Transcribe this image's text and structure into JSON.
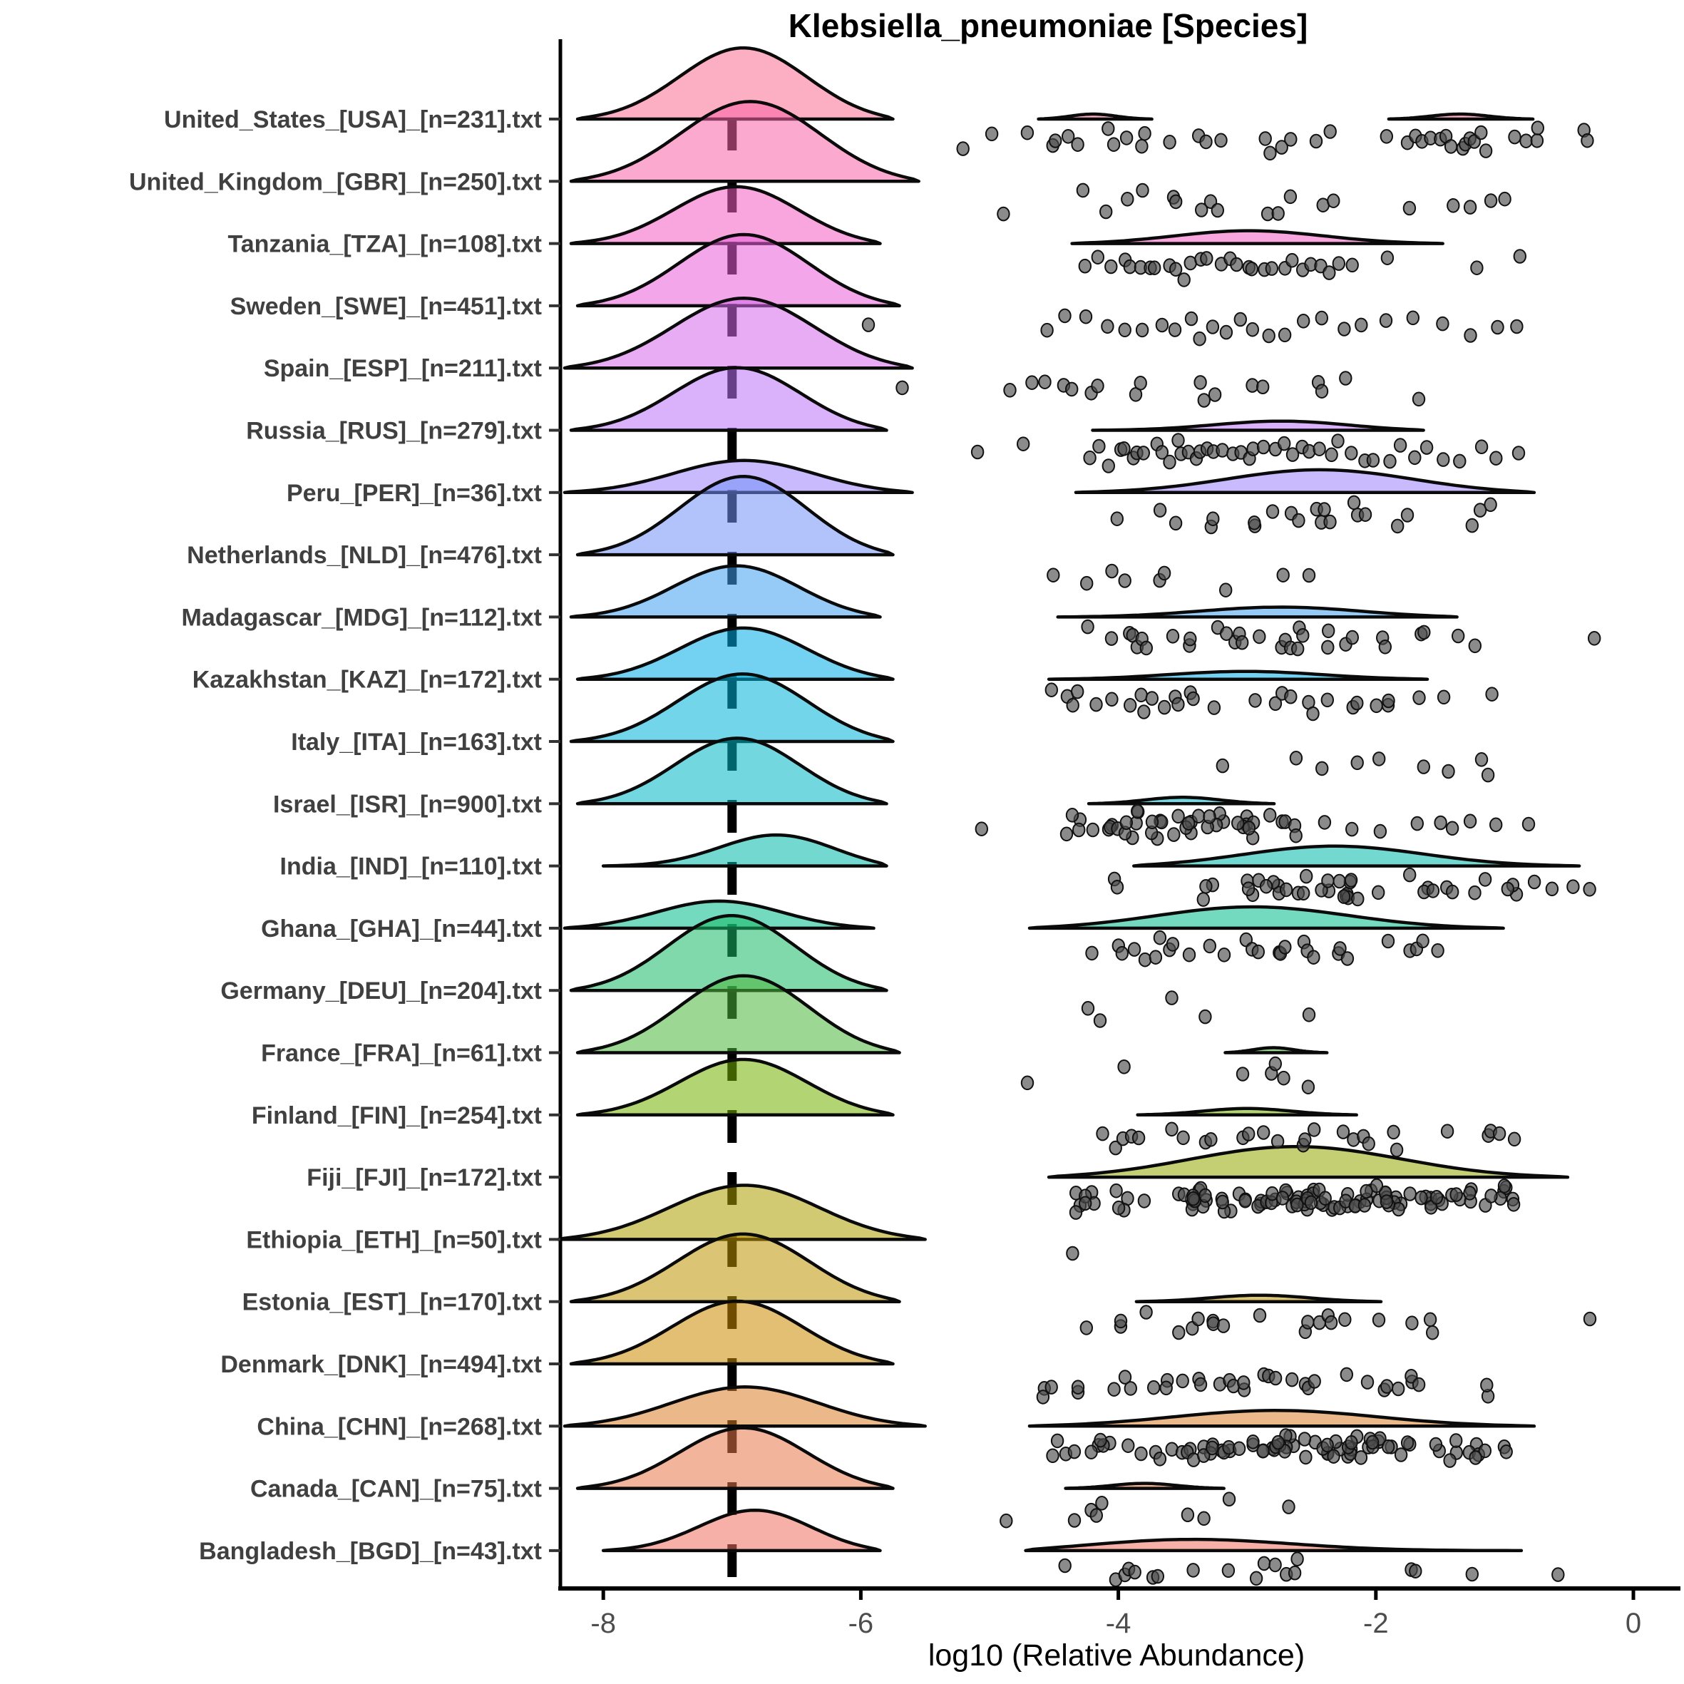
{
  "title": "Klebsiella_pneumoniae [Species]",
  "xlabel": "log10 (Relative Abundance)",
  "chart_data": {
    "type": "ridgeline_raincloud",
    "x_axis": {
      "ticks": [
        -8,
        -6,
        -4,
        -2,
        0
      ],
      "tick_labels": [
        "-8",
        "-6",
        "-4",
        "-2",
        "0"
      ],
      "xlim": [
        -8.33,
        0.35
      ]
    },
    "median_dash_line_x": -7,
    "style": {
      "fill_alpha": 0.55,
      "outline_color": "#0a0a0a",
      "point_color": "#4d4d4d",
      "point_stroke": "#111111",
      "axis_color": "#000000",
      "tick_label_color": "#4d4d4d",
      "y_label_color": "#404040"
    },
    "rows": [
      {
        "label": "United_States_[USA]_[n=231].txt",
        "n": 231,
        "color": "#FA6E90",
        "zero_ridge": {
          "x0": -8.2,
          "x1": -5.75,
          "peak": -6.9,
          "h": 100
        },
        "detect_ridges": [
          {
            "x0": -4.62,
            "x1": -3.74,
            "peak": -4.2,
            "h": 7
          },
          {
            "x0": -1.9,
            "x1": -0.78,
            "peak": -1.35,
            "h": 7
          }
        ],
        "points": [
          -5.19,
          -4.98,
          -4.72,
          -4.5,
          -4.47,
          -4.4,
          -4.33,
          -4.09,
          -4.02,
          -3.94,
          -3.83,
          -3.78,
          -3.59,
          -3.38,
          -3.31,
          -3.21,
          -2.86,
          -2.81,
          -2.74,
          -2.67,
          -2.46,
          -2.34,
          -1.91,
          -1.77,
          -1.7,
          -1.65,
          -1.58,
          -1.52,
          -1.45,
          -1.4,
          -1.34,
          -1.29,
          -1.25,
          -1.22,
          -1.18,
          -1.13,
          -0.94,
          -0.84,
          -0.77,
          -0.75,
          -0.38,
          -0.35
        ],
        "point_clusters": []
      },
      {
        "label": "United_Kingdom_[GBR]_[n=250].txt",
        "n": 250,
        "color": "#F863A8",
        "zero_ridge": {
          "x0": -8.25,
          "x1": -5.55,
          "peak": -6.85,
          "h": 112
        },
        "detect_ridges": [],
        "points": [
          -4.88,
          -4.26,
          -4.09,
          -3.93,
          -3.81,
          -3.59,
          -3.55,
          -3.36,
          -3.29,
          -3.24,
          -2.84,
          -2.77,
          -2.67,
          -2.41,
          -2.34,
          -1.74,
          -1.41,
          -1.25,
          -1.1,
          -0.99
        ],
        "point_clusters": []
      },
      {
        "label": "Tanzania_[TZA]_[n=108].txt",
        "n": 108,
        "color": "#F25CC1",
        "zero_ridge": {
          "x0": -8.25,
          "x1": -5.85,
          "peak": -6.95,
          "h": 80
        },
        "detect_ridges": [
          {
            "x0": -4.36,
            "x1": -1.48,
            "peak": -3.0,
            "h": 18
          }
        ],
        "points": [
          -4.28,
          -4.15,
          -4.05,
          -3.95,
          -3.9,
          -3.82,
          -3.75,
          -3.7,
          -3.62,
          -3.55,
          -3.5,
          -3.45,
          -3.38,
          -3.3,
          -3.22,
          -3.15,
          -3.08,
          -3.0,
          -2.95,
          -2.88,
          -2.8,
          -2.72,
          -2.65,
          -2.58,
          -2.5,
          -2.42,
          -2.35,
          -2.28,
          -2.2,
          -1.93,
          -1.2,
          -0.87
        ],
        "point_clusters": []
      },
      {
        "label": "Sweden_[SWE]_[n=451].txt",
        "n": 451,
        "color": "#E95DD8",
        "zero_ridge": {
          "x0": -8.2,
          "x1": -5.7,
          "peak": -6.9,
          "h": 100
        },
        "detect_ridges": [],
        "points": [
          -5.95,
          -4.54,
          -4.4,
          -4.25,
          -4.1,
          -3.95,
          -3.8,
          -3.65,
          -3.55,
          -3.45,
          -3.35,
          -3.25,
          -3.15,
          -3.05,
          -2.95,
          -2.85,
          -2.7,
          -2.55,
          -2.4,
          -2.25,
          -2.1,
          -1.9,
          -1.7,
          -1.5,
          -1.25,
          -1.05,
          -0.92
        ],
        "point_clusters": []
      },
      {
        "label": "Spain_[ESP]_[n=211].txt",
        "n": 211,
        "color": "#D567EB",
        "zero_ridge": {
          "x0": -8.3,
          "x1": -5.6,
          "peak": -6.9,
          "h": 98
        },
        "detect_ridges": [],
        "points": [
          -5.66,
          -4.83,
          -4.69,
          -4.59,
          -4.42,
          -4.38,
          -4.21,
          -4.18,
          -3.88,
          -3.85,
          -3.38,
          -3.34,
          -3.27,
          -2.98,
          -2.86,
          -2.43,
          -2.4,
          -2.24,
          -1.67
        ],
        "point_clusters": []
      },
      {
        "label": "Russia_[RUS]_[n=279].txt",
        "n": 279,
        "color": "#BC71F7",
        "zero_ridge": {
          "x0": -8.25,
          "x1": -5.8,
          "peak": -6.95,
          "h": 88
        },
        "detect_ridges": [
          {
            "x0": -4.2,
            "x1": -1.63,
            "peak": -2.7,
            "h": 13
          }
        ],
        "points": [
          -5.11,
          -4.76,
          -4.21,
          -4.15,
          -4.08,
          -4.0,
          -3.95,
          -3.9,
          -3.85,
          -3.8,
          -3.72,
          -3.65,
          -3.6,
          -3.55,
          -3.5,
          -3.45,
          -3.4,
          -3.35,
          -3.3,
          -3.25,
          -3.2,
          -3.12,
          -3.05,
          -3.0,
          -2.95,
          -2.88,
          -2.8,
          -2.72,
          -2.65,
          -2.58,
          -2.5,
          -2.42,
          -2.35,
          -2.28,
          -2.2,
          -2.1,
          -2.0,
          -1.9,
          -1.8,
          -1.7,
          -1.6,
          -1.48,
          -1.35,
          -1.2,
          -1.05,
          -0.89
        ],
        "point_clusters": []
      },
      {
        "label": "Peru_[PER]_[n=36].txt",
        "n": 36,
        "color": "#9C80FB",
        "zero_ridge": {
          "x0": -8.3,
          "x1": -5.6,
          "peak": -6.9,
          "h": 45
        },
        "detect_ridges": [
          {
            "x0": -4.33,
            "x1": -0.77,
            "peak": -2.41,
            "h": 32
          }
        ],
        "points": [
          -4.02,
          -3.69,
          -3.55,
          -3.29,
          -3.27,
          -2.96,
          -2.94,
          -2.79,
          -2.67,
          -2.58,
          -2.46,
          -2.44,
          -2.42,
          -2.36,
          -2.17,
          -2.15,
          -2.1,
          -1.84,
          -1.74,
          -1.25,
          -1.17,
          -1.13
        ],
        "point_clusters": []
      },
      {
        "label": "Netherlands_[NLD]_[n=476].txt",
        "n": 476,
        "color": "#7291F8",
        "zero_ridge": {
          "x0": -8.2,
          "x1": -5.75,
          "peak": -6.9,
          "h": 110
        },
        "detect_ridges": [],
        "points": [
          -4.5,
          -4.24,
          -4.07,
          -3.95,
          -3.69,
          -3.66,
          -3.17,
          -2.74,
          -2.5
        ],
        "point_clusters": []
      },
      {
        "label": "Madagascar_[MDG]_[n=112].txt",
        "n": 112,
        "color": "#3FA0F0",
        "zero_ridge": {
          "x0": -8.25,
          "x1": -5.85,
          "peak": -6.95,
          "h": 72
        },
        "detect_ridges": [
          {
            "x0": -4.47,
            "x1": -1.37,
            "peak": -2.7,
            "h": 14
          }
        ],
        "points": [
          -4.26,
          -4.07,
          -3.93,
          -3.9,
          -3.87,
          -3.83,
          -3.8,
          -3.57,
          -3.45,
          -3.43,
          -3.24,
          -3.17,
          -3.1,
          -3.07,
          -3.03,
          -2.91,
          -2.74,
          -2.71,
          -2.68,
          -2.62,
          -2.59,
          -2.55,
          -2.38,
          -2.36,
          -2.22,
          -2.2,
          -1.96,
          -1.94,
          -1.63,
          -1.61,
          -1.34,
          -1.22,
          -0.32
        ],
        "point_clusters": []
      },
      {
        "label": "Kazakhstan_[KAZ]_[n=172].txt",
        "n": 172,
        "color": "#00ABE8",
        "zero_ridge": {
          "x0": -8.2,
          "x1": -5.75,
          "peak": -6.9,
          "h": 72
        },
        "detect_ridges": [
          {
            "x0": -4.54,
            "x1": -1.6,
            "peak": -3.0,
            "h": 11
          }
        ],
        "points": [
          -4.52,
          -4.38,
          -4.35,
          -4.3,
          -4.19,
          -4.07,
          -3.93,
          -3.81,
          -3.78,
          -3.75,
          -3.64,
          -3.55,
          -3.52,
          -3.43,
          -3.4,
          -3.27,
          -2.93,
          -2.77,
          -2.74,
          -2.65,
          -2.51,
          -2.48,
          -2.36,
          -2.19,
          -2.16,
          -1.98,
          -1.91,
          -1.88,
          -1.67,
          -1.46,
          -1.1
        ],
        "point_clusters": []
      },
      {
        "label": "Italy_[ITA]_[n=163].txt",
        "n": 163,
        "color": "#00B2D9",
        "zero_ridge": {
          "x0": -8.25,
          "x1": -5.75,
          "peak": -6.9,
          "h": 95
        },
        "detect_ridges": [],
        "points": [
          -3.17,
          -2.6,
          -2.41,
          -2.13,
          -1.98,
          -1.63,
          -1.44,
          -1.18,
          -1.15
        ],
        "point_clusters": []
      },
      {
        "label": "Israel_[ISR]_[n=900].txt",
        "n": 900,
        "color": "#00B7C4",
        "zero_ridge": {
          "x0": -8.2,
          "x1": -5.8,
          "peak": -6.95,
          "h": 92
        },
        "detect_ridges": [
          {
            "x0": -4.23,
            "x1": -2.79,
            "peak": -3.5,
            "h": 9
          }
        ],
        "points": [
          -5.06,
          -2.4,
          -2.2,
          -1.98,
          -1.7,
          -1.51,
          -1.42,
          -1.28,
          -1.08,
          -0.8
        ],
        "point_clusters": [
          [
            -4.48,
            -2.55,
            44
          ]
        ]
      },
      {
        "label": "India_[IND]_[n=110].txt",
        "n": 110,
        "color": "#00BAAA",
        "zero_ridge": {
          "x0": -8.0,
          "x1": -5.8,
          "peak": -6.6,
          "h": 45
        },
        "detect_ridges": [
          {
            "x0": -3.88,
            "x1": -0.42,
            "peak": -2.36,
            "h": 28
          }
        ],
        "points": [
          -4.02,
          -4.0,
          -0.75,
          -0.62,
          -0.47,
          -0.35
        ],
        "point_clusters": [
          [
            -3.45,
            -0.9,
            38
          ]
        ]
      },
      {
        "label": "Ghana_[GHA]_[n=44].txt",
        "n": 44,
        "color": "#00BB8A",
        "zero_ridge": {
          "x0": -8.3,
          "x1": -5.9,
          "peak": -7.1,
          "h": 38
        },
        "detect_ridges": [
          {
            "x0": -4.69,
            "x1": -1.01,
            "peak": -2.98,
            "h": 30
          }
        ],
        "points": [
          -4.19,
          -3.98,
          -3.95,
          -3.88,
          -3.78,
          -3.69,
          -3.66,
          -3.59,
          -3.56,
          -3.43,
          -3.27,
          -3.17,
          -3.0,
          -2.97,
          -2.93,
          -2.77,
          -2.74,
          -2.71,
          -2.55,
          -2.52,
          -2.49,
          -2.29,
          -2.26,
          -2.22,
          -1.91,
          -1.74,
          -1.67,
          -1.64,
          -1.51
        ],
        "point_clusters": []
      },
      {
        "label": "Germany_[DEU]_[n=204].txt",
        "n": 204,
        "color": "#16BA64",
        "zero_ridge": {
          "x0": -8.25,
          "x1": -5.8,
          "peak": -7.0,
          "h": 105
        },
        "detect_ridges": [],
        "points": [
          -4.24,
          -4.12,
          -3.59,
          -3.31,
          -2.53
        ],
        "point_clusters": []
      },
      {
        "label": "France_[FRA]_[n=61].txt",
        "n": 61,
        "color": "#4DB73D",
        "zero_ridge": {
          "x0": -8.2,
          "x1": -5.7,
          "peak": -6.9,
          "h": 108
        },
        "detect_ridges": [
          {
            "x0": -3.17,
            "x1": -2.38,
            "peak": -2.8,
            "h": 7
          }
        ],
        "points": [
          -4.71,
          -3.95,
          -3.03,
          -2.79,
          -2.76,
          -2.72,
          -2.53
        ],
        "point_clusters": []
      },
      {
        "label": "Finland_[FIN]_[n=254].txt",
        "n": 254,
        "color": "#73B100",
        "zero_ridge": {
          "x0": -8.2,
          "x1": -5.75,
          "peak": -6.9,
          "h": 78
        },
        "detect_ridges": [
          {
            "x0": -3.85,
            "x1": -2.15,
            "peak": -3.0,
            "h": 9
          }
        ],
        "points": [
          -4.14,
          -4.0,
          -3.98,
          -3.88,
          -3.86,
          -3.59,
          -3.48,
          -3.33,
          -3.27,
          -3.03,
          -2.98,
          -2.86,
          -2.77,
          -2.58,
          -2.53,
          -2.46,
          -2.27,
          -2.19,
          -2.08,
          -2.06,
          -1.87,
          -1.85,
          -1.46,
          -1.13,
          -1.11,
          -1.04,
          -0.94
        ],
        "point_clusters": []
      },
      {
        "label": "Fiji_[FJI]_[n=172].txt",
        "n": 172,
        "color": "#93A800",
        "zero_ridge": null,
        "detect_ridges": [
          {
            "x0": -4.54,
            "x1": -0.51,
            "peak": -2.64,
            "h": 43
          }
        ],
        "points": [],
        "point_clusters": [
          [
            -4.35,
            -3.65,
            12
          ],
          [
            -3.6,
            -1.5,
            80
          ],
          [
            -1.45,
            -0.86,
            14
          ]
        ]
      },
      {
        "label": "Ethiopia_[ETH]_[n=50].txt",
        "n": 50,
        "color": "#AB9E00",
        "zero_ridge": {
          "x0": -8.35,
          "x1": -5.5,
          "peak": -6.9,
          "h": 76
        },
        "detect_ridges": [],
        "points": [
          -4.35
        ],
        "point_clusters": []
      },
      {
        "label": "Estonia_[EST]_[n=170].txt",
        "n": 170,
        "color": "#BD9400",
        "zero_ridge": {
          "x0": -8.25,
          "x1": -5.7,
          "peak": -6.9,
          "h": 95
        },
        "detect_ridges": [
          {
            "x0": -3.86,
            "x1": -1.96,
            "peak": -2.9,
            "h": 9
          }
        ],
        "points": [
          -4.26,
          -4.0,
          -3.98,
          -3.78,
          -3.52,
          -3.41,
          -3.39,
          -3.27,
          -3.25,
          -3.19,
          -2.91,
          -2.53,
          -2.51,
          -2.43,
          -2.36,
          -2.34,
          -2.22,
          -1.98,
          -1.72,
          -1.58,
          -1.56,
          -0.32
        ],
        "point_clusters": []
      },
      {
        "label": "Denmark_[DNK]_[n=494].txt",
        "n": 494,
        "color": "#CC8A00",
        "zero_ridge": {
          "x0": -8.25,
          "x1": -5.75,
          "peak": -6.95,
          "h": 88
        },
        "detect_ridges": [],
        "points": [
          -4.59,
          -4.57,
          -4.52,
          -4.33,
          -4.31,
          -4.05,
          -3.93,
          -3.91,
          -3.72,
          -3.64,
          -3.62,
          -3.52,
          -3.38,
          -3.36,
          -3.21,
          -3.12,
          -3.1,
          -3.03,
          -3.01,
          -2.86,
          -2.84,
          -2.77,
          -2.67,
          -2.55,
          -2.53,
          -2.46,
          -2.22,
          -2.05,
          -1.94,
          -1.92,
          -1.82,
          -1.74,
          -1.72,
          -1.67,
          -1.15,
          -1.13
        ],
        "point_clusters": []
      },
      {
        "label": "China_[CHN]_[n=268].txt",
        "n": 268,
        "color": "#DA7F28",
        "zero_ridge": {
          "x0": -8.3,
          "x1": -5.5,
          "peak": -6.9,
          "h": 55
        },
        "detect_ridges": [
          {
            "x0": -4.69,
            "x1": -0.77,
            "peak": -2.79,
            "h": 22
          }
        ],
        "points": [],
        "point_clusters": [
          [
            -4.55,
            -3.6,
            14
          ],
          [
            -3.55,
            -1.6,
            56
          ],
          [
            -1.55,
            -0.9,
            12
          ]
        ]
      },
      {
        "label": "Canada_[CAN]_[n=75].txt",
        "n": 75,
        "color": "#E77747",
        "zero_ridge": {
          "x0": -8.2,
          "x1": -5.75,
          "peak": -6.9,
          "h": 85
        },
        "detect_ridges": [
          {
            "x0": -4.41,
            "x1": -3.18,
            "peak": -3.8,
            "h": 7
          }
        ],
        "points": [
          -4.88,
          -4.32,
          -4.2,
          -4.18,
          -4.15,
          -3.47,
          -3.33,
          -3.16,
          -2.66
        ],
        "point_clusters": []
      },
      {
        "label": "Bangladesh_[BGD]_[n=43].txt",
        "n": 43,
        "color": "#F0705F",
        "zero_ridge": {
          "x0": -8.0,
          "x1": -5.85,
          "peak": -6.8,
          "h": 57
        },
        "detect_ridges": [
          {
            "x0": -4.72,
            "x1": -0.87,
            "peak": -3.56,
            "h": 17
          }
        ],
        "points": [
          -4.41,
          -4.04,
          -3.96,
          -3.9,
          -3.87,
          -3.75,
          -3.7,
          -3.42,
          -3.13,
          -2.92,
          -2.85,
          -2.78,
          -2.69,
          -2.61,
          -2.59,
          -1.72,
          -1.69,
          -1.27,
          -0.6
        ],
        "point_clusters": []
      }
    ]
  }
}
